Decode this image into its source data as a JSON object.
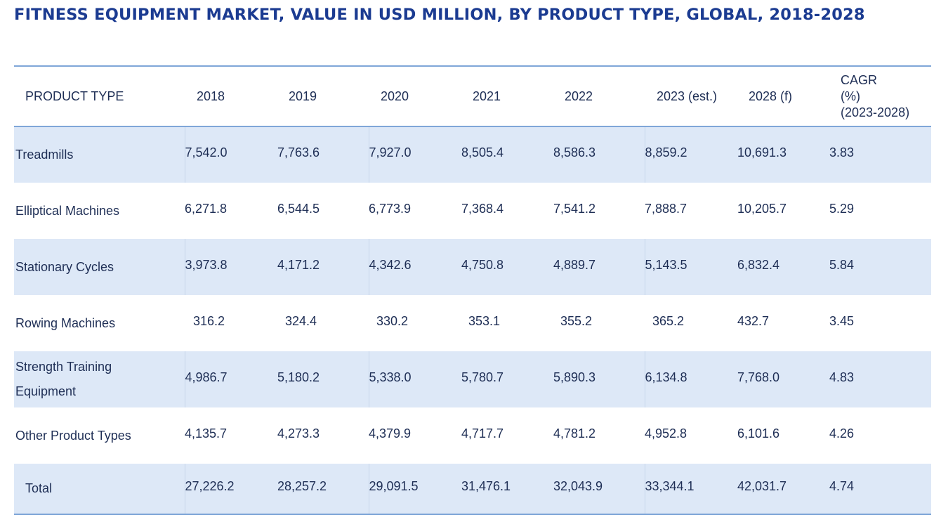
{
  "title": "FITNESS EQUIPMENT MARKET, VALUE IN USD MILLION, BY PRODUCT TYPE, GLOBAL, 2018-2028",
  "headers": [
    "PRODUCT TYPE",
    "2018",
    "2019",
    "2020",
    "2021",
    "2022",
    "2023 (est.)",
    "2028 (f)",
    "CAGR",
    "(%)",
    "(2023-2028)"
  ],
  "rows": [
    {
      "label": "Treadmills",
      "values": [
        "7,542.0",
        "7,763.6",
        "7,927.0",
        "8,505.4",
        "8,586.3",
        "8,859.2",
        "10,691.3",
        "3.83"
      ]
    },
    {
      "label": "Elliptical Machines",
      "values": [
        "6,271.8",
        "6,544.5",
        "6,773.9",
        "7,368.4",
        "7,541.2",
        "7,888.7",
        "10,205.7",
        "5.29"
      ]
    },
    {
      "label": "Stationary Cycles",
      "values": [
        "3,973.8",
        "4,171.2",
        "4,342.6",
        "4,750.8",
        "4,889.7",
        "5,143.5",
        "6,832.4",
        "5.84"
      ]
    },
    {
      "label": "Rowing Machines",
      "values": [
        "316.2",
        "324.4",
        "330.2",
        "353.1",
        "355.2",
        "365.2",
        "432.7",
        "3.45"
      ]
    },
    {
      "label_line1": "Strength Training",
      "label_line2": "Equipment",
      "values": [
        "4,986.7",
        "5,180.2",
        "5,338.0",
        "5,780.7",
        "5,890.3",
        "6,134.8",
        "7,768.0",
        "4.83"
      ]
    },
    {
      "label": "Other Product Types",
      "values": [
        "4,135.7",
        "4,273.3",
        "4,379.9",
        "4,717.7",
        "4,781.2",
        "4,952.8",
        "6,101.6",
        "4.26"
      ]
    },
    {
      "label": "Total",
      "values": [
        "27,226.2",
        "28,257.2",
        "29,091.5",
        "31,476.1",
        "32,043.9",
        "33,344.1",
        "42,031.7",
        "4.74"
      ]
    }
  ]
}
